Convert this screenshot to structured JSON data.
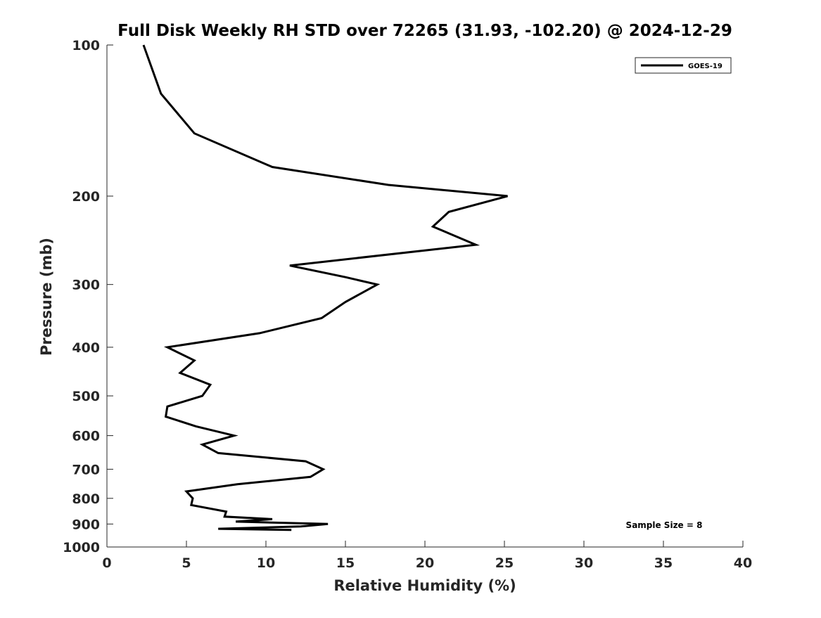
{
  "chart_data": {
    "type": "line",
    "title": "Full Disk Weekly RH STD over 72265 (31.93, -102.20) @ 2024-12-29",
    "xlabel": "Relative Humidity (%)",
    "ylabel": "Pressure (mb)",
    "xlim": [
      0,
      40
    ],
    "ylim": [
      100,
      1000
    ],
    "y_scale": "log",
    "y_reversed": true,
    "x_ticks": [
      "0",
      "5",
      "10",
      "15",
      "20",
      "25",
      "30",
      "35",
      "40"
    ],
    "y_ticks": [
      "100",
      "200",
      "300",
      "400",
      "500",
      "600",
      "700",
      "800",
      "900",
      "1000"
    ],
    "grid": false,
    "legend_position": "top-right",
    "annotation": "Sample Size = 8",
    "series": [
      {
        "name": "GOES-19",
        "color": "#000000",
        "points": [
          [
            2.3,
            100
          ],
          [
            3.4,
            125
          ],
          [
            5.5,
            150
          ],
          [
            10.4,
            175
          ],
          [
            17.7,
            190
          ],
          [
            25.2,
            200
          ],
          [
            21.5,
            215
          ],
          [
            20.5,
            230
          ],
          [
            23.2,
            250
          ],
          [
            11.5,
            275
          ],
          [
            15,
            290
          ],
          [
            17,
            300
          ],
          [
            15,
            325
          ],
          [
            13.5,
            350
          ],
          [
            9.6,
            375
          ],
          [
            3.8,
            400
          ],
          [
            5.5,
            425
          ],
          [
            4.6,
            450
          ],
          [
            6.5,
            475
          ],
          [
            6,
            500
          ],
          [
            3.8,
            525
          ],
          [
            3.7,
            550
          ],
          [
            5.6,
            575
          ],
          [
            8,
            600
          ],
          [
            6,
            625
          ],
          [
            7,
            650
          ],
          [
            12.5,
            675
          ],
          [
            13.6,
            700
          ],
          [
            12.8,
            725
          ],
          [
            8.2,
            750
          ],
          [
            5,
            775
          ],
          [
            5.4,
            800
          ],
          [
            5.3,
            825
          ],
          [
            7.5,
            850
          ],
          [
            7.4,
            870
          ],
          [
            10.4,
            880
          ],
          [
            8.1,
            890
          ],
          [
            13.9,
            900
          ],
          [
            12.2,
            910
          ],
          [
            7,
            920
          ],
          [
            11.6,
            925
          ]
        ]
      }
    ]
  }
}
